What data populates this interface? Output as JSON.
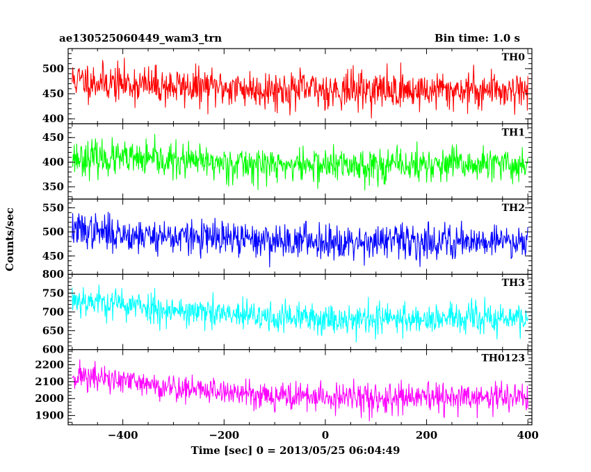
{
  "chart_data": {
    "type": "line",
    "title": "ae130525060449_wam3_trn",
    "bin_time": "Bin time: 1.0 s",
    "xlabel": "Time [sec] 0 = 2013/05/25 06:04:49",
    "ylabel": "Counts/sec",
    "xlim": [
      -508,
      408
    ],
    "x_ticks": [
      -400,
      -200,
      0,
      200,
      400
    ],
    "x_tick_labels": [
      "−400",
      "−200",
      "0",
      "200",
      "400"
    ],
    "x_step": 1.0,
    "x_start": -500,
    "x_end": 400,
    "series": [
      {
        "name": "TH0",
        "color": "#ff0000",
        "ylim": [
          390,
          540
        ],
        "y_ticks": [
          400,
          450,
          500
        ],
        "y_tick_labels": [
          "400",
          "450",
          "500"
        ],
        "profile": {
          "x": [
            -500,
            -400,
            -300,
            -200,
            -100,
            0,
            100,
            200,
            300,
            400
          ],
          "mean": [
            478,
            470,
            464,
            462,
            458,
            458,
            458,
            456,
            458,
            458
          ]
        },
        "spread": 38,
        "seed": 11
      },
      {
        "name": "TH1",
        "color": "#00ff00",
        "ylim": [
          325,
          478
        ],
        "y_ticks": [
          350,
          400,
          450
        ],
        "y_tick_labels": [
          "350",
          "400",
          "450"
        ],
        "profile": {
          "x": [
            -500,
            -400,
            -300,
            -200,
            -100,
            0,
            100,
            200,
            300,
            400
          ],
          "mean": [
            410,
            406,
            402,
            398,
            394,
            394,
            394,
            394,
            394,
            394
          ]
        },
        "spread": 35,
        "seed": 23
      },
      {
        "name": "TH2",
        "color": "#0000ff",
        "ylim": [
          412,
          568
        ],
        "y_ticks": [
          450,
          500,
          550
        ],
        "y_tick_labels": [
          "450",
          "500",
          "550"
        ],
        "profile": {
          "x": [
            -500,
            -400,
            -300,
            -200,
            -100,
            0,
            100,
            200,
            300,
            400
          ],
          "mean": [
            505,
            495,
            490,
            485,
            482,
            482,
            480,
            480,
            482,
            482
          ]
        },
        "spread": 36,
        "seed": 37
      },
      {
        "name": "TH3",
        "color": "#00ffff",
        "ylim": [
          600,
          800
        ],
        "y_ticks": [
          600,
          650,
          700,
          750,
          800
        ],
        "y_tick_labels": [
          "600",
          "650",
          "700",
          "750",
          "800"
        ],
        "profile": {
          "x": [
            -500,
            -400,
            -300,
            -200,
            -100,
            0,
            100,
            200,
            300,
            400
          ],
          "mean": [
            735,
            720,
            705,
            692,
            685,
            682,
            682,
            682,
            682,
            682
          ]
        },
        "spread": 42,
        "seed": 53
      },
      {
        "name": "TH0123",
        "color": "#ff00ff",
        "ylim": [
          1845,
          2290
        ],
        "y_ticks": [
          1900,
          2000,
          2100,
          2200
        ],
        "y_tick_labels": [
          "1900",
          "2000",
          "2100",
          "2200"
        ],
        "profile": {
          "x": [
            -500,
            -400,
            -300,
            -200,
            -100,
            0,
            100,
            200,
            300,
            400
          ],
          "mean": [
            2140,
            2100,
            2065,
            2040,
            2020,
            2005,
            2000,
            2000,
            2005,
            2010
          ]
        },
        "spread": 85,
        "seed": 71
      }
    ]
  }
}
